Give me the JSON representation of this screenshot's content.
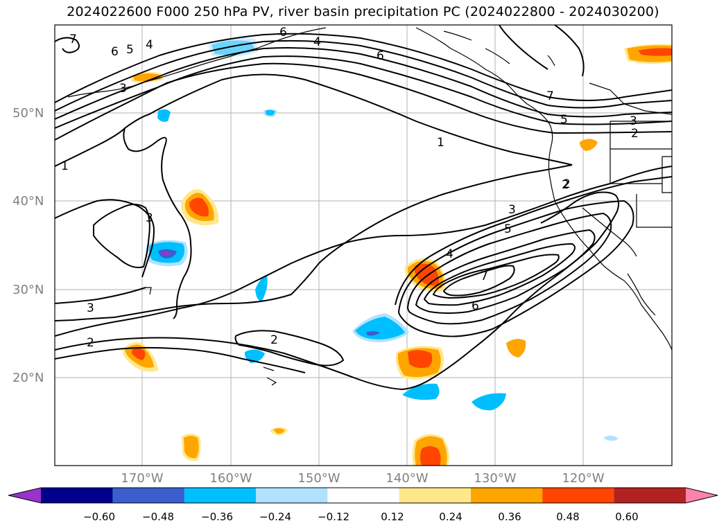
{
  "title": "2024022600 F000 250 hPa PV, river basin precipitation PC (2024022800 - 2024030200)",
  "latitude_labels": [
    "50°N",
    "40°N",
    "30°N",
    "20°N"
  ],
  "longitude_labels": [
    "170°W",
    "160°W",
    "150°W",
    "140°W",
    "130°W",
    "120°W"
  ],
  "contour_labels": [
    "7",
    "6",
    "5",
    "4",
    "3",
    "1",
    "3",
    "2",
    "3",
    "2",
    "2",
    "1",
    "6",
    "7",
    "5",
    "3",
    "2",
    "2",
    "3",
    "5",
    "4",
    "7",
    "6",
    "4",
    "6"
  ],
  "colorbar": {
    "ticks": [
      "−0.60",
      "−0.48",
      "−0.36",
      "−0.24",
      "−0.12",
      "0.12",
      "0.24",
      "0.36",
      "0.48",
      "0.60"
    ],
    "colors": [
      "#9933cc",
      "#00008b",
      "#3a5fcd",
      "#00bfff",
      "#b0e2ff",
      "#ffffff",
      "#ffe88c",
      "#ffa500",
      "#ff4500",
      "#b22222",
      "#ff82ab"
    ]
  },
  "chart_data": {
    "type": "map",
    "map_extent": {
      "lon": [
        -180,
        -110
      ],
      "lat": [
        10,
        60
      ]
    },
    "contour_field": "250 hPa PV",
    "contour_levels": [
      1,
      2,
      3,
      4,
      5,
      6,
      7
    ],
    "shaded_field": "river basin precipitation PC"
  }
}
